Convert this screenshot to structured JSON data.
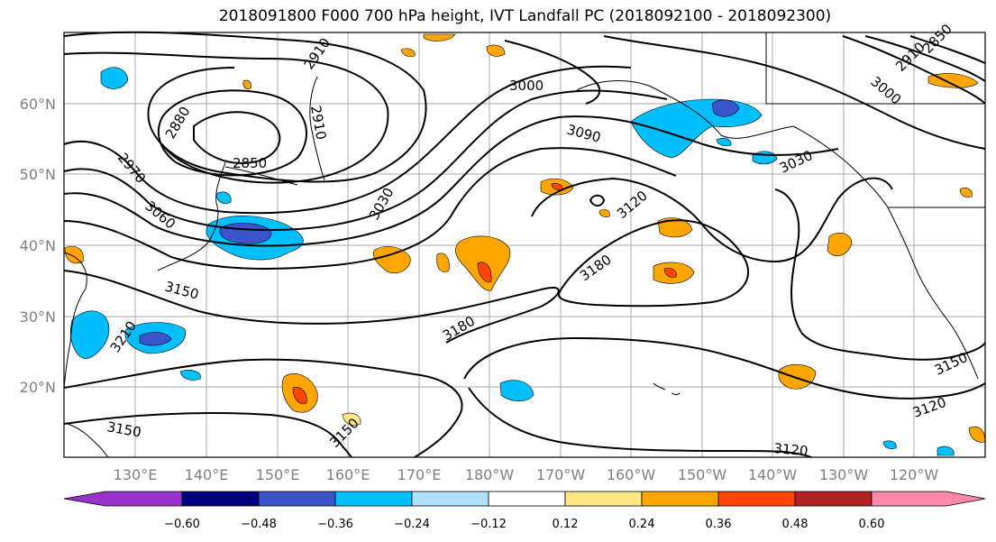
{
  "title": "2018091800 F000 700 hPa height, IVT Landfall PC (2018092100 - 2018092300)",
  "map": {
    "lat_labels": [
      "60°N",
      "50°N",
      "40°N",
      "30°N",
      "20°N"
    ],
    "lon_labels": [
      "130°E",
      "140°E",
      "150°E",
      "160°E",
      "170°E",
      "180°W",
      "170°W",
      "160°W",
      "150°W",
      "140°W",
      "130°W",
      "120°W"
    ],
    "contour_labels": [
      "2910",
      "3000",
      "2880",
      "2910",
      "2850",
      "2970",
      "3060",
      "3030",
      "3090",
      "3120",
      "3030",
      "3000",
      "2910",
      "2850",
      "3150",
      "3210",
      "3180",
      "3180",
      "3150",
      "3120",
      "3120",
      "3150",
      "3150"
    ]
  },
  "colorbar": {
    "ticks": [
      "−0.60",
      "−0.48",
      "−0.36",
      "−0.24",
      "−0.12",
      "0.12",
      "0.24",
      "0.36",
      "0.48",
      "0.60"
    ],
    "colors": [
      "#9932cc",
      "#000080",
      "#3a55cc",
      "#00bfff",
      "#aee0ff",
      "#ffffff",
      "#ffe680",
      "#ffa500",
      "#ff4500",
      "#b22222",
      "#ff88aa"
    ]
  }
}
